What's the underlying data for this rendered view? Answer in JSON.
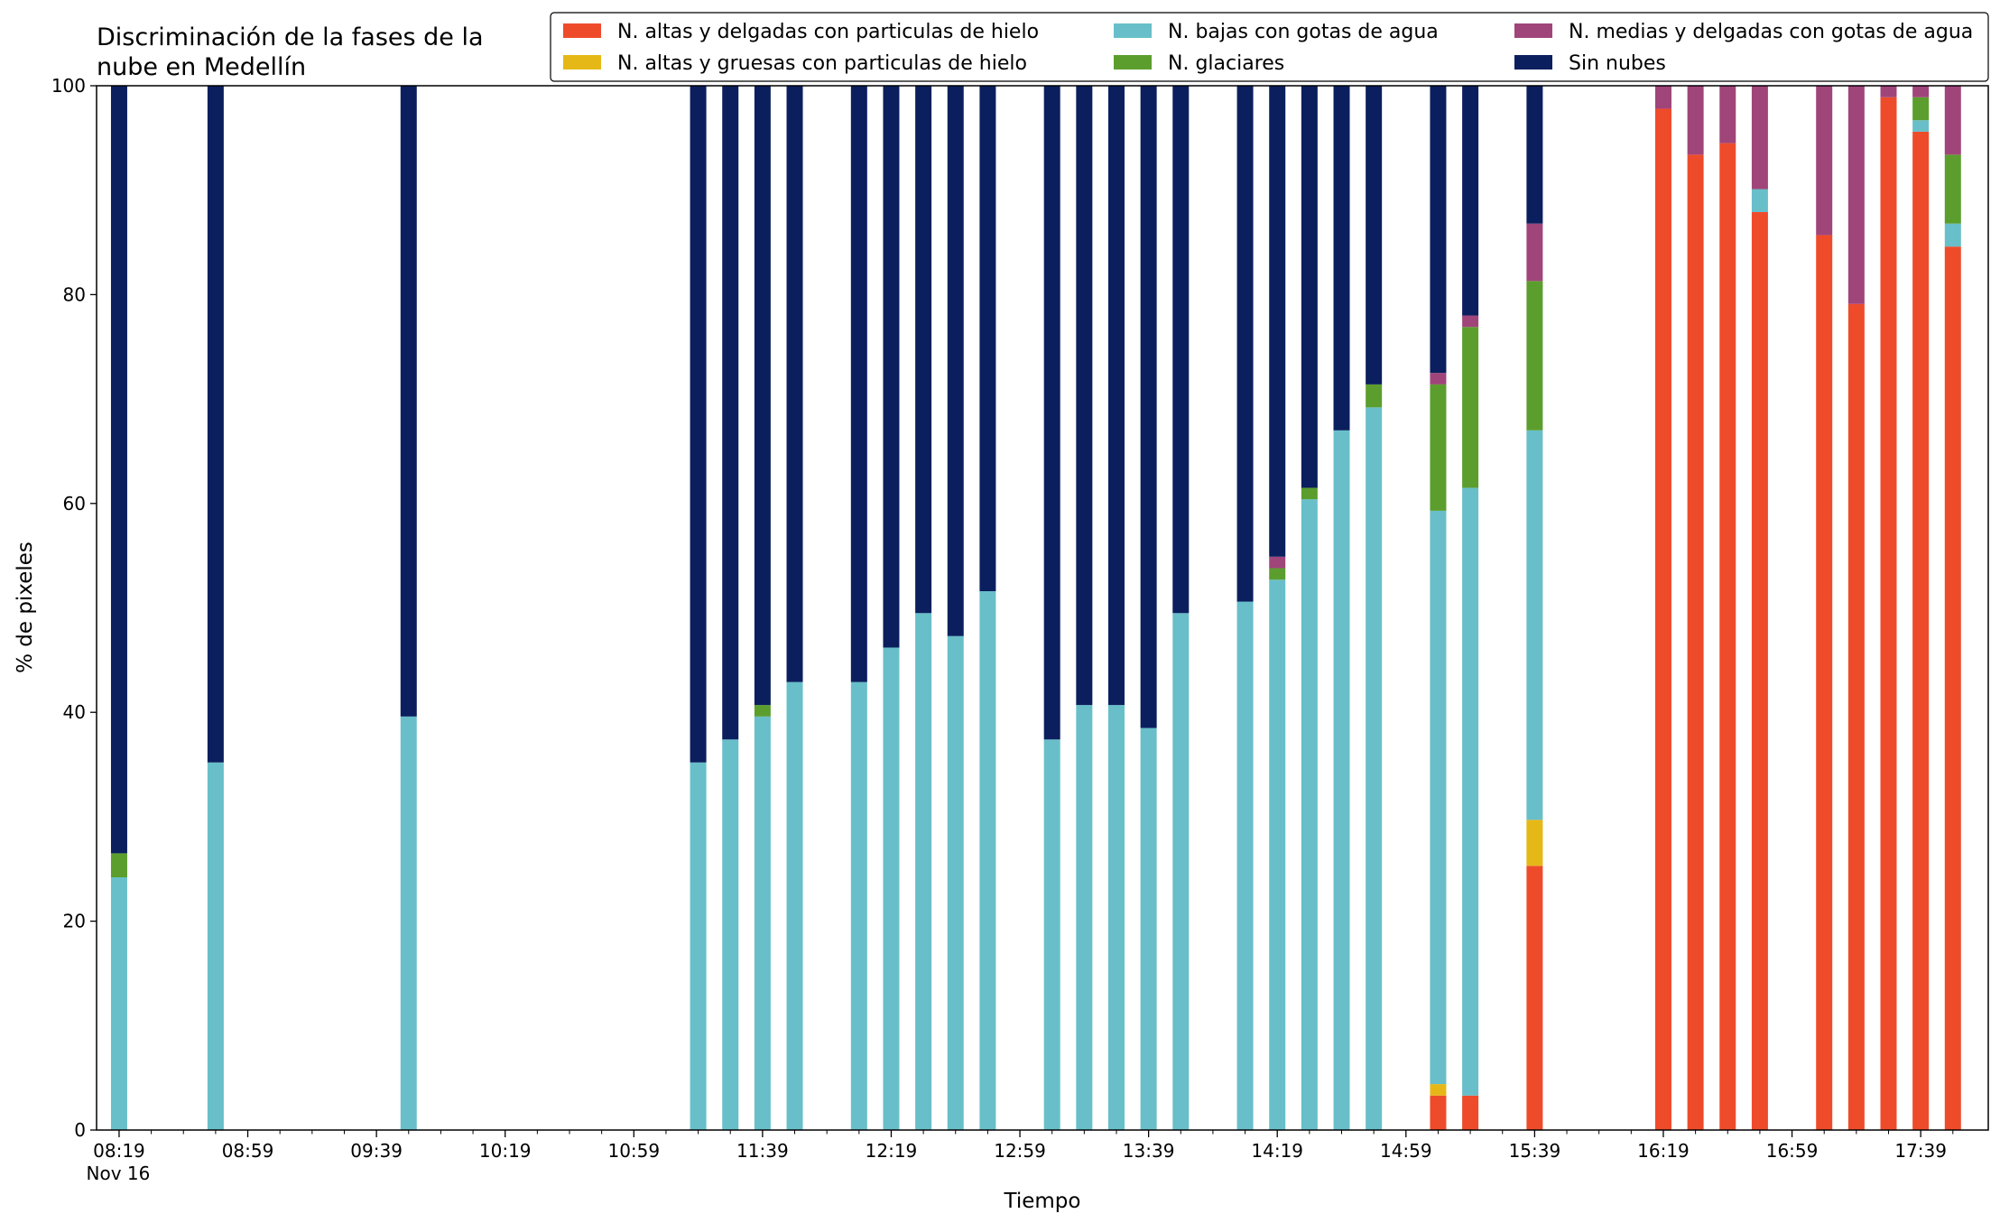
{
  "chart_data": {
    "type": "bar",
    "stacked": true,
    "title_lines": [
      "Discriminación de la fases de la",
      "nube en Medellín"
    ],
    "xlabel": "Tiempo",
    "ylabel": "% de pixeles",
    "ylim": [
      0,
      100
    ],
    "yticks": [
      "0",
      "20",
      "40",
      "60",
      "80",
      "100"
    ],
    "xlim_minutes": [
      -7,
      581
    ],
    "xticks": [
      {
        "label": "08:19",
        "sublabel": "Nov 16",
        "minute": 0
      },
      {
        "label": "08:59",
        "minute": 40
      },
      {
        "label": "09:39",
        "minute": 80
      },
      {
        "label": "10:19",
        "minute": 120
      },
      {
        "label": "10:59",
        "minute": 160
      },
      {
        "label": "11:39",
        "minute": 200
      },
      {
        "label": "12:19",
        "minute": 240
      },
      {
        "label": "12:59",
        "minute": 280
      },
      {
        "label": "13:39",
        "minute": 320
      },
      {
        "label": "14:19",
        "minute": 360
      },
      {
        "label": "14:59",
        "minute": 400
      },
      {
        "label": "15:39",
        "minute": 440
      },
      {
        "label": "16:19",
        "minute": 480
      },
      {
        "label": "16:59",
        "minute": 520
      },
      {
        "label": "17:39",
        "minute": 560
      }
    ],
    "legend": {
      "placement": "top-right",
      "entries": [
        {
          "name": "N. altas y delgadas con particulas de hielo",
          "key": "ah"
        },
        {
          "name": "N. altas y gruesas con particulas de hielo",
          "key": "ag"
        },
        {
          "name": "N. bajas con gotas de agua",
          "key": "bg"
        },
        {
          "name": "N. glaciares",
          "key": "gl"
        },
        {
          "name": "N. medias y delgadas con gotas de agua",
          "key": "md"
        },
        {
          "name": "Sin nubes",
          "key": "sn"
        }
      ]
    },
    "colors": {
      "ah": "#ee4b2b",
      "ag": "#e6b817",
      "bg": "#68bfc9",
      "gl": "#5c9e2e",
      "md": "#a0457a",
      "sn": "#0b1f5e"
    },
    "stack_order": [
      "ah",
      "ag",
      "bg",
      "gl",
      "md",
      "sn"
    ],
    "bars": [
      {
        "time": "08:19",
        "ah": 0,
        "ag": 0,
        "bg": 24.2,
        "gl": 2.3,
        "md": 0,
        "sn": 73.5
      },
      {
        "time": "08:49",
        "ah": 0,
        "ag": 0,
        "bg": 35.2,
        "gl": 0,
        "md": 0,
        "sn": 64.8
      },
      {
        "time": "09:49",
        "ah": 0,
        "ag": 0,
        "bg": 39.6,
        "gl": 0,
        "md": 0,
        "sn": 60.4
      },
      {
        "time": "11:19",
        "ah": 0,
        "ag": 0,
        "bg": 35.2,
        "gl": 0,
        "md": 0,
        "sn": 64.8
      },
      {
        "time": "11:29",
        "ah": 0,
        "ag": 0,
        "bg": 37.4,
        "gl": 0,
        "md": 0,
        "sn": 62.6
      },
      {
        "time": "11:39",
        "ah": 0,
        "ag": 0,
        "bg": 39.6,
        "gl": 1.1,
        "md": 0,
        "sn": 59.3
      },
      {
        "time": "11:49",
        "ah": 0,
        "ag": 0,
        "bg": 42.9,
        "gl": 0,
        "md": 0,
        "sn": 57.1
      },
      {
        "time": "12:09",
        "ah": 0,
        "ag": 0,
        "bg": 42.9,
        "gl": 0,
        "md": 0,
        "sn": 57.1
      },
      {
        "time": "12:19",
        "ah": 0,
        "ag": 0,
        "bg": 46.2,
        "gl": 0,
        "md": 0,
        "sn": 53.8
      },
      {
        "time": "12:29",
        "ah": 0,
        "ag": 0,
        "bg": 49.5,
        "gl": 0,
        "md": 0,
        "sn": 50.5
      },
      {
        "time": "12:39",
        "ah": 0,
        "ag": 0,
        "bg": 47.3,
        "gl": 0,
        "md": 0,
        "sn": 52.7
      },
      {
        "time": "12:49",
        "ah": 0,
        "ag": 0,
        "bg": 51.6,
        "gl": 0,
        "md": 0,
        "sn": 48.4
      },
      {
        "time": "13:09",
        "ah": 0,
        "ag": 0,
        "bg": 37.4,
        "gl": 0,
        "md": 0,
        "sn": 62.6
      },
      {
        "time": "13:19",
        "ah": 0,
        "ag": 0,
        "bg": 40.7,
        "gl": 0,
        "md": 0,
        "sn": 59.3
      },
      {
        "time": "13:29",
        "ah": 0,
        "ag": 0,
        "bg": 40.7,
        "gl": 0,
        "md": 0,
        "sn": 59.3
      },
      {
        "time": "13:39",
        "ah": 0,
        "ag": 0,
        "bg": 38.5,
        "gl": 0,
        "md": 0,
        "sn": 61.5
      },
      {
        "time": "13:49",
        "ah": 0,
        "ag": 0,
        "bg": 49.5,
        "gl": 0,
        "md": 0,
        "sn": 50.5
      },
      {
        "time": "14:09",
        "ah": 0,
        "ag": 0,
        "bg": 50.6,
        "gl": 0,
        "md": 0,
        "sn": 49.4
      },
      {
        "time": "14:19",
        "ah": 0,
        "ag": 0,
        "bg": 52.7,
        "gl": 1.1,
        "md": 1.1,
        "sn": 45.1
      },
      {
        "time": "14:29",
        "ah": 0,
        "ag": 0,
        "bg": 60.4,
        "gl": 1.1,
        "md": 0,
        "sn": 38.5
      },
      {
        "time": "14:39",
        "ah": 0,
        "ag": 0,
        "bg": 67.0,
        "gl": 0,
        "md": 0,
        "sn": 33.0
      },
      {
        "time": "14:49",
        "ah": 0,
        "ag": 0,
        "bg": 69.2,
        "gl": 2.2,
        "md": 0,
        "sn": 28.6
      },
      {
        "time": "15:09",
        "ah": 3.3,
        "ag": 1.1,
        "bg": 54.9,
        "gl": 12.1,
        "md": 1.1,
        "sn": 27.5
      },
      {
        "time": "15:19",
        "ah": 3.3,
        "ag": 0,
        "bg": 58.2,
        "gl": 15.4,
        "md": 1.1,
        "sn": 22.0
      },
      {
        "time": "15:39",
        "ah": 25.3,
        "ag": 4.4,
        "bg": 37.3,
        "gl": 14.3,
        "md": 5.5,
        "sn": 13.2
      },
      {
        "time": "16:19",
        "ah": 97.8,
        "ag": 0,
        "bg": 0,
        "gl": 0,
        "md": 2.2,
        "sn": 0
      },
      {
        "time": "16:29",
        "ah": 93.4,
        "ag": 0,
        "bg": 0,
        "gl": 0,
        "md": 6.6,
        "sn": 0
      },
      {
        "time": "16:39",
        "ah": 94.5,
        "ag": 0,
        "bg": 0,
        "gl": 0,
        "md": 5.5,
        "sn": 0
      },
      {
        "time": "16:49",
        "ah": 87.9,
        "ag": 0,
        "bg": 2.2,
        "gl": 0,
        "md": 9.9,
        "sn": 0
      },
      {
        "time": "17:09",
        "ah": 85.7,
        "ag": 0,
        "bg": 0,
        "gl": 0,
        "md": 14.3,
        "sn": 0
      },
      {
        "time": "17:19",
        "ah": 79.1,
        "ag": 0,
        "bg": 0,
        "gl": 0,
        "md": 20.9,
        "sn": 0
      },
      {
        "time": "17:29",
        "ah": 98.9,
        "ag": 0,
        "bg": 0,
        "gl": 0,
        "md": 1.1,
        "sn": 0
      },
      {
        "time": "17:39",
        "ah": 95.6,
        "ag": 0,
        "bg": 1.1,
        "gl": 2.2,
        "md": 1.1,
        "sn": 0
      },
      {
        "time": "17:49",
        "ah": 84.6,
        "ag": 0,
        "bg": 2.2,
        "gl": 6.6,
        "md": 6.6,
        "sn": 0
      }
    ],
    "grid": false
  }
}
